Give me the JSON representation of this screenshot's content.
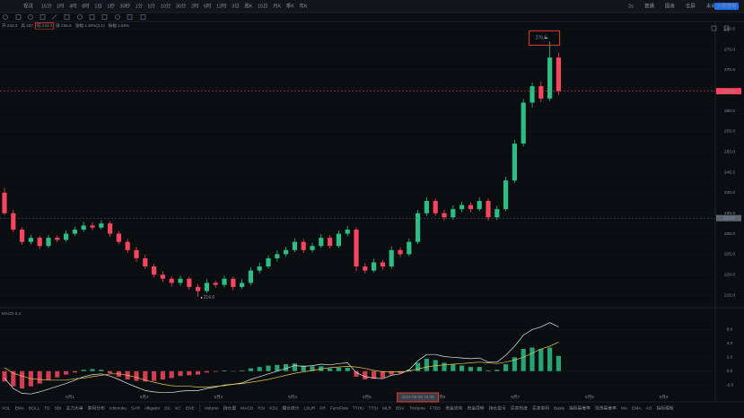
{
  "toolbar": {
    "symbol": "现货",
    "timeframes": [
      "15分",
      "1时",
      "4时",
      "8时",
      "1日",
      "1秒",
      "30秒",
      "1分",
      "5分",
      "10分",
      "30分",
      "2时",
      "6时",
      "12时",
      "3日",
      "周K",
      "15日",
      "月K",
      "季K",
      "年K"
    ],
    "active": 1,
    "right_items": [
      "2s",
      "普通",
      "图表",
      "全屏",
      "未命名",
      "大神带单"
    ]
  },
  "ohlc_header": [
    "开 233.3",
    "高 237",
    "低 233.4",
    "收 236.6",
    "涨幅 1.30%(3.1)",
    "振幅 1.55%"
  ],
  "chart_data": {
    "type": "candlestick",
    "candles": [
      [
        240,
        241.2,
        234.6,
        235
      ],
      [
        235,
        235.8,
        230.4,
        231
      ],
      [
        231,
        231.6,
        227.3,
        228
      ],
      [
        228,
        229.8,
        227.4,
        229
      ],
      [
        229,
        229.5,
        226.3,
        227
      ],
      [
        227,
        229.7,
        226.5,
        229
      ],
      [
        229,
        229.6,
        227.9,
        228.5
      ],
      [
        228.5,
        230.8,
        228,
        230
      ],
      [
        230,
        231.7,
        229.5,
        231
      ],
      [
        231,
        232.9,
        230.4,
        232
      ],
      [
        232,
        232.8,
        230.9,
        231.5
      ],
      [
        231.5,
        233.3,
        231,
        232.5
      ],
      [
        232.5,
        233,
        229.3,
        230
      ],
      [
        230,
        230.6,
        227.4,
        228
      ],
      [
        228,
        228.7,
        225.3,
        226
      ],
      [
        226,
        226.8,
        223.2,
        224
      ],
      [
        224,
        224.9,
        221.4,
        222
      ],
      [
        222,
        222.7,
        219.3,
        220
      ],
      [
        220,
        220.8,
        218.2,
        219
      ],
      [
        219,
        219.6,
        217.1,
        218
      ],
      [
        218,
        219.8,
        217.3,
        219
      ],
      [
        219,
        219.5,
        216.3,
        217
      ],
      [
        217,
        217.7,
        214.6,
        216
      ],
      [
        216,
        218.9,
        215.5,
        218
      ],
      [
        218,
        218.6,
        216.8,
        217.5
      ],
      [
        217.5,
        219.8,
        216.9,
        219
      ],
      [
        219,
        219.5,
        216.2,
        217
      ],
      [
        217,
        218.9,
        216.5,
        218
      ],
      [
        218,
        221.8,
        217.4,
        221
      ],
      [
        221,
        222.9,
        220.3,
        222
      ],
      [
        222,
        224.7,
        221.5,
        224
      ],
      [
        224,
        225.9,
        223.2,
        225
      ],
      [
        225,
        226.8,
        224.4,
        226
      ],
      [
        226,
        228.9,
        225.5,
        228
      ],
      [
        228,
        228.7,
        225.3,
        226
      ],
      [
        226,
        227.8,
        225.4,
        227
      ],
      [
        227,
        229.9,
        226.5,
        229
      ],
      [
        229,
        229.7,
        226.4,
        227
      ],
      [
        227,
        230.8,
        226.5,
        230
      ],
      [
        230,
        231.9,
        229.4,
        231
      ],
      [
        231,
        231.6,
        220.8,
        222
      ],
      [
        222,
        222.8,
        220.3,
        221
      ],
      [
        221,
        223.9,
        220.5,
        223
      ],
      [
        223,
        223.6,
        221.2,
        222
      ],
      [
        222,
        226.9,
        221.4,
        226
      ],
      [
        226,
        226.7,
        224.3,
        225
      ],
      [
        225,
        228.8,
        224.5,
        228
      ],
      [
        228,
        235.8,
        227.5,
        235
      ],
      [
        235,
        238.9,
        234.3,
        238
      ],
      [
        238,
        238.6,
        234.4,
        235
      ],
      [
        235,
        235.8,
        233.2,
        234
      ],
      [
        234,
        236.9,
        233.4,
        236
      ],
      [
        236,
        237.8,
        235.3,
        237
      ],
      [
        237,
        237.7,
        235.2,
        236
      ],
      [
        236,
        238.9,
        235.5,
        238
      ],
      [
        238,
        238.6,
        233.2,
        234
      ],
      [
        234,
        236.8,
        233.4,
        236
      ],
      [
        236,
        243.9,
        235.5,
        243
      ],
      [
        243,
        252.9,
        242.4,
        252
      ],
      [
        252,
        262.9,
        251.3,
        262
      ],
      [
        262,
        266.9,
        260.8,
        266
      ],
      [
        266,
        267.2,
        262.1,
        263
      ],
      [
        263,
        276.9,
        262.4,
        273
      ],
      [
        273,
        274.2,
        263.9,
        264.8
      ]
    ],
    "up_color": "#2ebd85",
    "down_color": "#f6465d",
    "ylim": [
      212.6,
      281.8
    ],
    "yticks": [
      {
        "value": 280,
        "label": "280.0"
      },
      {
        "value": 275,
        "label": "275.0"
      },
      {
        "value": 270,
        "label": "270.0"
      },
      {
        "value": 265,
        "label": "265.0"
      },
      {
        "value": 260,
        "label": "260.0"
      },
      {
        "value": 255,
        "label": "255.0"
      },
      {
        "value": 250,
        "label": "250.0"
      },
      {
        "value": 245,
        "label": "245.0"
      },
      {
        "value": 240,
        "label": "240.0"
      },
      {
        "value": 235,
        "label": "235.0"
      },
      {
        "value": 230,
        "label": "230.0"
      },
      {
        "value": 225,
        "label": "225.0"
      },
      {
        "value": 220,
        "label": "220.0"
      },
      {
        "value": 215,
        "label": "215.0"
      }
    ],
    "price_markers": [
      {
        "value": 264.8,
        "color": "#f6465d"
      },
      {
        "value": 233.8,
        "color": "#5d6673"
      }
    ],
    "high_mark": {
      "index": 62,
      "value": 276.9
    },
    "low_mark": {
      "index": 22,
      "value": 214.6
    },
    "x_labels": [
      "5月1",
      "5月2",
      "5月3",
      "5月4",
      "5月5",
      "5月6",
      "5月7",
      "5月8",
      "5月9"
    ],
    "crosshair": {
      "index": 47,
      "label": "2024-05-05 15:00"
    },
    "macd": {
      "title": "MACD 2,4",
      "ylim": [
        -3.4,
        8
      ],
      "yticks": [
        {
          "value": 6,
          "label": "6.0"
        },
        {
          "value": 4,
          "label": "4.0"
        },
        {
          "value": 2,
          "label": "2.0"
        },
        {
          "value": 0,
          "label": "0.0"
        },
        {
          "value": -2,
          "label": "-2.0"
        }
      ],
      "hist": [
        -1.5,
        -2.2,
        -2.5,
        -2.2,
        -1.8,
        -1.3,
        -0.9,
        -0.5,
        -0.2,
        0.2,
        0.3,
        0.2,
        -0.3,
        -0.8,
        -1.2,
        -1.4,
        -1.5,
        -1.4,
        -1.2,
        -1.0,
        -0.7,
        -0.6,
        -0.5,
        -0.2,
        -0.1,
        0.1,
        0.0,
        0.1,
        0.4,
        0.6,
        0.8,
        0.9,
        1.0,
        1.1,
        0.8,
        0.7,
        0.7,
        0.4,
        0.5,
        0.5,
        -0.8,
        -1.2,
        -1.1,
        -1.0,
        -0.5,
        -0.3,
        0.2,
        1.2,
        1.8,
        1.6,
        1.2,
        1.0,
        0.8,
        0.6,
        0.6,
        0.1,
        0.2,
        1.0,
        2.0,
        3.2,
        3.4,
        3.2,
        3.4,
        2.2
      ],
      "dif": [
        -1,
        -2.5,
        -3.2,
        -3.3,
        -3,
        -2.6,
        -2.2,
        -1.8,
        -1.3,
        -0.8,
        -0.5,
        -0.4,
        -0.7,
        -1.2,
        -1.8,
        -2.3,
        -2.8,
        -3.0,
        -3.1,
        -3.1,
        -2.9,
        -2.8,
        -2.8,
        -2.5,
        -2.3,
        -2.0,
        -1.9,
        -1.7,
        -1.2,
        -0.8,
        -0.4,
        0,
        0.4,
        0.8,
        0.7,
        0.8,
        1.0,
        0.9,
        1.1,
        1.2,
        -0.2,
        -0.8,
        -1.0,
        -1.1,
        -0.6,
        -0.4,
        0.2,
        1.5,
        2.4,
        2.4,
        2.1,
        2.0,
        1.9,
        1.8,
        1.9,
        1.3,
        1.3,
        2.3,
        3.6,
        5.2,
        6.0,
        6.4,
        7.0,
        6.4
      ],
      "dea": [
        0.5,
        -0.3,
        -0.7,
        -1.1,
        -1.2,
        -1.3,
        -1.3,
        -1.3,
        -1.1,
        -1.0,
        -0.8,
        -0.6,
        -0.4,
        -0.4,
        -0.6,
        -0.9,
        -1.3,
        -1.6,
        -1.9,
        -2.1,
        -2.2,
        -2.2,
        -2.3,
        -2.3,
        -2.2,
        -2.1,
        -1.9,
        -1.8,
        -1.6,
        -1.4,
        -1.2,
        -0.9,
        -0.6,
        -0.3,
        -0.1,
        0.1,
        0.3,
        0.5,
        0.6,
        0.7,
        0.6,
        0.4,
        0.1,
        -0.1,
        -0.1,
        -0.1,
        0,
        0.3,
        0.6,
        0.8,
        0.9,
        1.0,
        1.1,
        1.2,
        1.3,
        1.2,
        1.1,
        1.3,
        1.6,
        2.0,
        2.6,
        3.2,
        3.6,
        4.2
      ],
      "dif_color": "#e6e6e6",
      "dea_color": "#e8c64b"
    }
  },
  "indicator_tabs": [
    "VOL",
    "EMA",
    "BOLL",
    "TD",
    "SBI",
    "主力大单",
    "筹码分布",
    "Ichimoku",
    "SAR",
    "Alligator",
    "DC",
    "KC",
    "ENE",
    "Volume",
    "持仓量",
    "MACD",
    "RSI",
    "KDJ",
    "爆仓统计",
    "LSUR",
    "FR",
    "FuroFlow",
    "TTHU",
    "TTSI",
    "MLR",
    "BSV",
    "Trixlume",
    "FTBS",
    "资金流向",
    "资金周转",
    "持仓盈亏",
    "买卖热度",
    "买卖筹码",
    "Basis",
    "指标基差率",
    "现货基差率",
    "MA",
    "EMA",
    "AO",
    "指标模板"
  ],
  "indicator_active": 15
}
